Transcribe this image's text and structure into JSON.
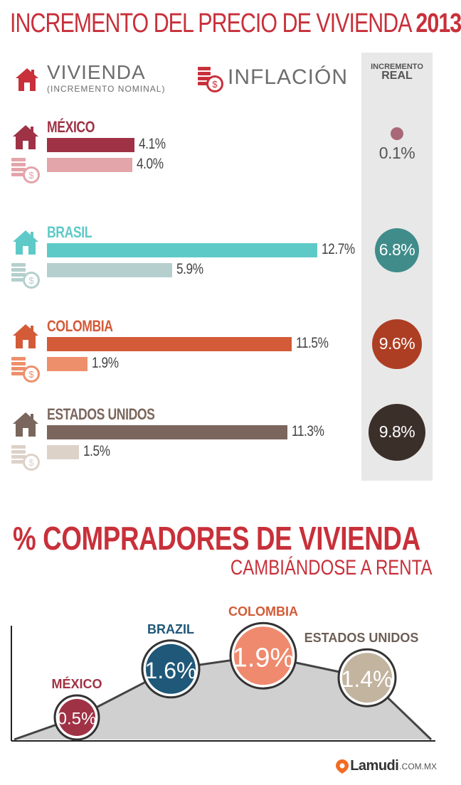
{
  "title": {
    "main": "INCREMENTO DEL PRECIO DE VIVIENDA",
    "year": "2013"
  },
  "legend": {
    "housing_label": "VIVIENDA",
    "housing_sub": "(INCREMENTO NOMINAL)",
    "inflation_label": "INFLACIÓN",
    "house_icon": "house-icon",
    "coins_icon": "coins-icon"
  },
  "real_header": {
    "line1": "INCREMENTO",
    "line2": "REAL"
  },
  "countries": [
    {
      "name": "MÉXICO",
      "housing": 4.1,
      "inflation": 4.0,
      "real": 0.1,
      "housing_label": "4.1%",
      "inflation_label": "4.0%",
      "real_label": "0.1%",
      "name_color": "#a03245",
      "housing_color": "#a03245",
      "inflation_color": "#e3a4aa",
      "real_color": "#a86878"
    },
    {
      "name": "BRASIL",
      "housing": 12.7,
      "inflation": 5.9,
      "real": 6.8,
      "housing_label": "12.7%",
      "inflation_label": "5.9%",
      "real_label": "6.8%",
      "name_color": "#5ecac8",
      "housing_color": "#5ecac8",
      "inflation_color": "#b4cfce",
      "real_color": "#3f8c8a"
    },
    {
      "name": "COLOMBIA",
      "housing": 11.5,
      "inflation": 1.9,
      "real": 9.6,
      "housing_label": "11.5%",
      "inflation_label": "1.9%",
      "real_label": "9.6%",
      "name_color": "#d35b38",
      "housing_color": "#d35b38",
      "inflation_color": "#ee8f6b",
      "real_color": "#ad3e23"
    },
    {
      "name": "ESTADOS UNIDOS",
      "housing": 11.3,
      "inflation": 1.5,
      "real": 9.8,
      "housing_label": "11.3%",
      "inflation_label": "1.5%",
      "real_label": "9.8%",
      "name_color": "#7a665c",
      "housing_color": "#7a665c",
      "inflation_color": "#ddd2c8",
      "real_color": "#3b2f2a"
    }
  ],
  "section2": {
    "title": "% COMPRADORES DE VIVIENDA",
    "subtitle": "CAMBIÁNDOSE A RENTA"
  },
  "chart_data": [
    {
      "type": "bar",
      "orientation": "horizontal",
      "title": "INCREMENTO DEL PRECIO DE VIVIENDA 2013",
      "categories": [
        "MÉXICO",
        "BRASIL",
        "COLOMBIA",
        "ESTADOS UNIDOS"
      ],
      "series": [
        {
          "name": "VIVIENDA (INCREMENTO NOMINAL)",
          "values": [
            4.1,
            12.7,
            11.5,
            11.3
          ]
        },
        {
          "name": "INFLACIÓN",
          "values": [
            4.0,
            5.9,
            1.9,
            1.5
          ]
        },
        {
          "name": "INCREMENTO REAL",
          "values": [
            0.1,
            6.8,
            9.6,
            9.8
          ]
        }
      ],
      "unit": "%"
    },
    {
      "type": "area",
      "title": "% COMPRADORES DE VIVIENDA CAMBIÁNDOSE A RENTA",
      "categories": [
        "MÉXICO",
        "BRAZIL",
        "COLOMBIA",
        "ESTADOS UNIDOS"
      ],
      "values": [
        0.5,
        1.6,
        1.9,
        1.4
      ],
      "labels": [
        "0.5%",
        "1.6%",
        "1.9%",
        "1.4%"
      ],
      "colors": [
        "#a03245",
        "#1f5878",
        "#ef8a6e",
        "#c2b49f"
      ],
      "label_colors": [
        "#a03245",
        "#1f5878",
        "#d35b38",
        "#6d5f56"
      ],
      "fill_color": "#d0d0d0"
    }
  ],
  "brand": {
    "name": "Lamudi",
    "suffix": ".COM.MX"
  }
}
